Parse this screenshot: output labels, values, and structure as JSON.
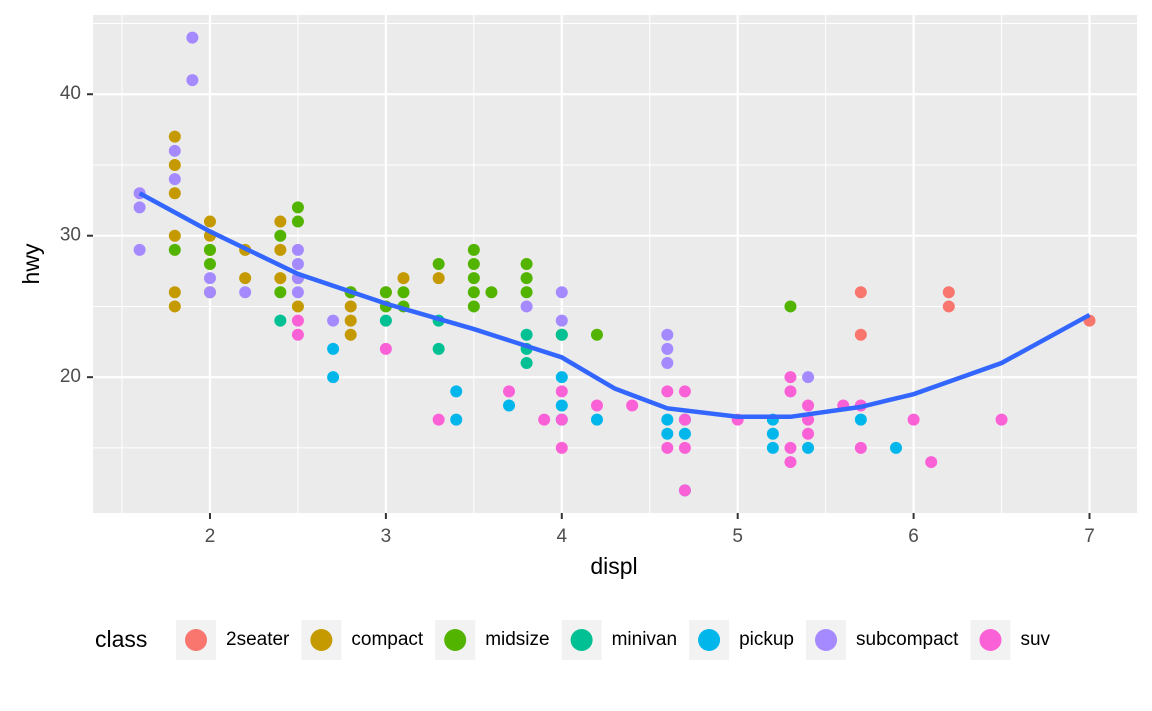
{
  "chart_data": {
    "type": "scatter",
    "x_label": "displ",
    "y_label": "hwy",
    "legend_title": "class",
    "legend_position": "bottom",
    "grid": true,
    "xlim": [
      1.335,
      7.27
    ],
    "ylim": [
      10.4,
      45.6
    ],
    "xticks": [
      2,
      3,
      4,
      5,
      6,
      7
    ],
    "yticks": [
      20,
      30,
      40
    ],
    "xminor": [
      1.5,
      2.5,
      3.5,
      4.5,
      5.5,
      6.5
    ],
    "yminor": [
      15,
      25,
      35,
      45
    ],
    "series": [
      {
        "name": "2seater",
        "color": "#F8766D",
        "x": [
          5.7,
          5.7,
          6.2,
          6.2,
          7
        ],
        "values": [
          26,
          23,
          26,
          25,
          24
        ]
      },
      {
        "name": "compact",
        "color": "#C49A00",
        "x": [
          1.8,
          1.8,
          1.8,
          1.8,
          1.8,
          1.8,
          2,
          2,
          2,
          2,
          2.2,
          2.2,
          2.4,
          2.4,
          2.4,
          2.5,
          2.5,
          2.8,
          2.8,
          2.8,
          2.8,
          3,
          3.1,
          3.3
        ],
        "values": [
          37,
          35,
          33,
          30,
          26,
          25,
          31,
          30,
          29,
          26,
          29,
          27,
          31,
          29,
          27,
          27,
          25,
          26,
          25,
          24,
          23,
          26,
          27,
          27
        ]
      },
      {
        "name": "midsize",
        "color": "#53B400",
        "x": [
          1.8,
          2,
          2,
          2.4,
          2.4,
          2.5,
          2.5,
          2.8,
          3,
          3,
          3.1,
          3.1,
          3.3,
          3.5,
          3.5,
          3.5,
          3.5,
          3.5,
          3.6,
          3.8,
          3.8,
          3.8,
          4,
          4.2,
          5.3
        ],
        "values": [
          29,
          29,
          28,
          30,
          26,
          32,
          31,
          26,
          26,
          25,
          26,
          25,
          28,
          29,
          28,
          27,
          26,
          25,
          26,
          28,
          27,
          26,
          23,
          23,
          25
        ]
      },
      {
        "name": "minivan",
        "color": "#00C094",
        "x": [
          2.4,
          3,
          3.3,
          3.3,
          3.8,
          3.8,
          3.8,
          4
        ],
        "values": [
          24,
          24,
          24,
          22,
          23,
          22,
          21,
          23
        ]
      },
      {
        "name": "pickup",
        "color": "#00B6EB",
        "x": [
          2.7,
          2.7,
          3.4,
          3.4,
          3.7,
          4,
          4,
          4,
          4.2,
          4.6,
          4.6,
          4.7,
          4.7,
          4.7,
          5.2,
          5.2,
          5.2,
          5.4,
          5.7,
          5.9
        ],
        "values": [
          22,
          20,
          19,
          17,
          18,
          20,
          18,
          17,
          17,
          17,
          16,
          16,
          17,
          12,
          17,
          16,
          15,
          15,
          17,
          15
        ]
      },
      {
        "name": "subcompact",
        "color": "#A58AFF",
        "x": [
          1.6,
          1.6,
          1.6,
          1.8,
          1.8,
          1.9,
          1.9,
          2,
          2,
          2.2,
          2.5,
          2.5,
          2.5,
          2.5,
          2.7,
          3.8,
          4,
          4,
          4.6,
          4.6,
          4.6,
          5.4
        ],
        "values": [
          33,
          32,
          29,
          36,
          34,
          44,
          41,
          27,
          26,
          26,
          29,
          28,
          27,
          26,
          24,
          25,
          26,
          24,
          23,
          22,
          21,
          20
        ]
      },
      {
        "name": "suv",
        "color": "#FB61D7",
        "x": [
          2.5,
          2.5,
          3,
          3.3,
          3.7,
          3.9,
          4,
          4,
          4,
          4.2,
          4.4,
          4.6,
          4.6,
          4.7,
          4.7,
          4.7,
          4.7,
          5,
          5.3,
          5.3,
          5.3,
          5.3,
          5.4,
          5.4,
          5.4,
          5.6,
          5.7,
          5.7,
          6,
          6.1,
          6.5
        ],
        "values": [
          24,
          23,
          22,
          17,
          19,
          17,
          19,
          17,
          15,
          18,
          18,
          19,
          15,
          19,
          17,
          15,
          12,
          17,
          20,
          19,
          15,
          14,
          18,
          17,
          16,
          18,
          18,
          15,
          17,
          14,
          17
        ]
      }
    ],
    "smooth": {
      "color": "#3366FF",
      "x": [
        1.6,
        2,
        2.5,
        3,
        3.5,
        4,
        4.3,
        4.6,
        5,
        5.3,
        5.7,
        6,
        6.5,
        7
      ],
      "values": [
        33,
        30.3,
        27.3,
        25.2,
        23.4,
        21.4,
        19.2,
        17.8,
        17.2,
        17.2,
        17.9,
        18.8,
        21,
        24.4
      ]
    }
  }
}
